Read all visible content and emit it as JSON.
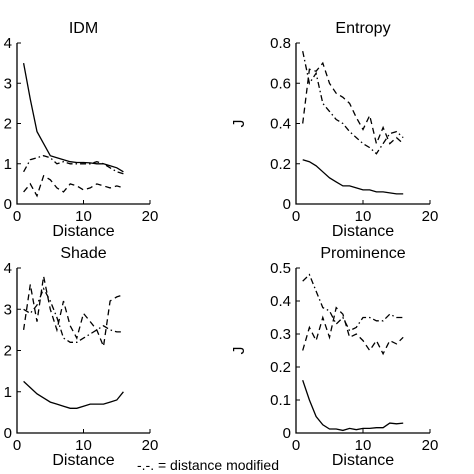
{
  "footer_text": "-.-. = distance modified",
  "chart_data": [
    {
      "type": "line",
      "title": "IDM",
      "xlabel": "Distance",
      "ylabel": "",
      "xlim": [
        0,
        20
      ],
      "ylim": [
        0,
        4
      ],
      "xticks": [
        "0",
        "10",
        "20"
      ],
      "yticks": [
        "0",
        "1",
        "2",
        "3",
        "4"
      ],
      "series": [
        {
          "style": "solid",
          "x": [
            1,
            2,
            3,
            4,
            5,
            6,
            7,
            8,
            9,
            10,
            11,
            12,
            13,
            14,
            15,
            16
          ],
          "values": [
            3.5,
            2.6,
            1.8,
            1.5,
            1.2,
            1.15,
            1.1,
            1.05,
            1.03,
            1.03,
            1.02,
            1.0,
            1.0,
            0.95,
            0.9,
            0.8
          ]
        },
        {
          "style": "dashdot",
          "x": [
            1,
            2,
            3,
            4,
            5,
            6,
            7,
            8,
            9,
            10,
            11,
            12,
            13,
            14,
            15,
            16
          ],
          "values": [
            0.8,
            1.1,
            1.15,
            1.2,
            1.15,
            1.0,
            1.05,
            1.0,
            1.0,
            1.0,
            1.0,
            1.05,
            1.0,
            0.9,
            0.8,
            0.75
          ]
        },
        {
          "style": "dashed",
          "x": [
            1,
            2,
            3,
            4,
            5,
            6,
            7,
            8,
            9,
            10,
            11,
            12,
            13,
            14,
            15,
            16
          ],
          "values": [
            0.3,
            0.5,
            0.2,
            0.7,
            0.6,
            0.4,
            0.3,
            0.5,
            0.45,
            0.35,
            0.4,
            0.5,
            0.45,
            0.4,
            0.45,
            0.4
          ]
        }
      ]
    },
    {
      "type": "line",
      "title": "Entropy",
      "xlabel": "Distance",
      "ylabel": "J",
      "xlim": [
        0,
        20
      ],
      "ylim": [
        0,
        0.8
      ],
      "xticks": [
        "0",
        "10",
        "20"
      ],
      "yticks": [
        "0",
        "0.2",
        "0.4",
        "0.6",
        "0.8"
      ],
      "series": [
        {
          "style": "solid",
          "x": [
            1,
            2,
            3,
            4,
            5,
            6,
            7,
            8,
            9,
            10,
            11,
            12,
            13,
            14,
            15,
            16
          ],
          "values": [
            0.22,
            0.21,
            0.19,
            0.16,
            0.13,
            0.11,
            0.09,
            0.09,
            0.08,
            0.07,
            0.07,
            0.06,
            0.06,
            0.055,
            0.05,
            0.05
          ]
        },
        {
          "style": "dashdot",
          "x": [
            1,
            2,
            3,
            4,
            5,
            6,
            7,
            8,
            9,
            10,
            11,
            12,
            13,
            14,
            15,
            16
          ],
          "values": [
            0.76,
            0.6,
            0.65,
            0.5,
            0.46,
            0.42,
            0.4,
            0.36,
            0.33,
            0.3,
            0.28,
            0.25,
            0.3,
            0.35,
            0.36,
            0.33
          ]
        },
        {
          "style": "dashed",
          "x": [
            1,
            2,
            3,
            4,
            5,
            6,
            7,
            8,
            9,
            10,
            11,
            12,
            13,
            14,
            15,
            16
          ],
          "values": [
            0.4,
            0.67,
            0.66,
            0.7,
            0.6,
            0.55,
            0.53,
            0.5,
            0.43,
            0.37,
            0.44,
            0.3,
            0.38,
            0.3,
            0.33,
            0.3
          ]
        }
      ]
    },
    {
      "type": "line",
      "title": "Shade",
      "xlabel": "Distance",
      "ylabel": "",
      "xlim": [
        0,
        20
      ],
      "ylim": [
        0,
        4
      ],
      "xticks": [
        "0",
        "10",
        "20"
      ],
      "yticks": [
        "0",
        "1",
        "2",
        "3",
        "4"
      ],
      "series": [
        {
          "style": "solid",
          "x": [
            1,
            2,
            3,
            4,
            5,
            6,
            7,
            8,
            9,
            10,
            11,
            12,
            13,
            14,
            15,
            16
          ],
          "values": [
            1.25,
            1.1,
            0.95,
            0.85,
            0.75,
            0.7,
            0.65,
            0.6,
            0.6,
            0.65,
            0.7,
            0.7,
            0.7,
            0.75,
            0.8,
            1.0
          ]
        },
        {
          "style": "dashdot",
          "x": [
            1,
            2,
            3,
            4,
            5,
            6,
            7,
            8,
            9,
            10,
            11,
            12,
            13,
            14,
            15,
            16
          ],
          "values": [
            3.0,
            2.9,
            3.1,
            3.5,
            3.2,
            2.8,
            2.3,
            2.2,
            2.2,
            2.3,
            2.4,
            2.5,
            2.6,
            2.5,
            2.45,
            2.45
          ]
        },
        {
          "style": "dashed",
          "x": [
            1,
            2,
            3,
            4,
            5,
            6,
            7,
            8,
            9,
            10,
            11,
            12,
            13,
            14,
            15,
            16
          ],
          "values": [
            2.5,
            3.6,
            2.7,
            3.8,
            3.0,
            2.5,
            3.2,
            2.6,
            2.3,
            2.9,
            2.7,
            2.5,
            2.1,
            3.2,
            3.3,
            3.35
          ]
        }
      ]
    },
    {
      "type": "line",
      "title": "Prominence",
      "xlabel": "Distance",
      "ylabel": "J",
      "xlim": [
        0,
        20
      ],
      "ylim": [
        0,
        0.5
      ],
      "xticks": [
        "0",
        "10",
        "20"
      ],
      "yticks": [
        "0",
        "0.1",
        "0.2",
        "0.3",
        "0.4",
        "0.5"
      ],
      "series": [
        {
          "style": "solid",
          "x": [
            1,
            2,
            3,
            4,
            5,
            6,
            7,
            8,
            9,
            10,
            11,
            12,
            13,
            14,
            15,
            16
          ],
          "values": [
            0.16,
            0.1,
            0.05,
            0.025,
            0.012,
            0.012,
            0.008,
            0.014,
            0.01,
            0.014,
            0.014,
            0.016,
            0.016,
            0.03,
            0.028,
            0.03
          ]
        },
        {
          "style": "dashdot",
          "x": [
            1,
            2,
            3,
            4,
            5,
            6,
            7,
            8,
            9,
            10,
            11,
            12,
            13,
            14,
            15,
            16
          ],
          "values": [
            0.46,
            0.48,
            0.43,
            0.38,
            0.37,
            0.33,
            0.35,
            0.31,
            0.32,
            0.35,
            0.35,
            0.34,
            0.34,
            0.36,
            0.35,
            0.35
          ]
        },
        {
          "style": "dashed",
          "x": [
            1,
            2,
            3,
            4,
            5,
            6,
            7,
            8,
            9,
            10,
            11,
            12,
            13,
            14,
            15,
            16
          ],
          "values": [
            0.25,
            0.32,
            0.28,
            0.35,
            0.29,
            0.38,
            0.36,
            0.29,
            0.3,
            0.28,
            0.25,
            0.28,
            0.24,
            0.28,
            0.27,
            0.29
          ]
        }
      ]
    }
  ]
}
